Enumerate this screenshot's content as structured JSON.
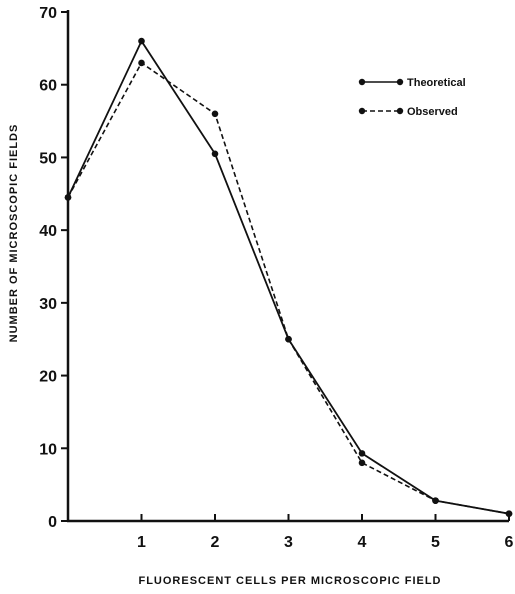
{
  "chart_data": {
    "type": "line",
    "title": "",
    "xlabel": "FLUORESCENT   CELLS   PER   MICROSCOPIC   FIELD",
    "ylabel": "NUMBER   OF   MICROSCOPIC   FIELDS",
    "xlim": [
      0,
      6
    ],
    "ylim": [
      0,
      70
    ],
    "x_ticks": [
      "1",
      "2",
      "3",
      "4",
      "5",
      "6"
    ],
    "y_ticks": [
      "0",
      "10",
      "20",
      "30",
      "40",
      "50",
      "60",
      "70"
    ],
    "grid": false,
    "legend_position": "top-right",
    "series": [
      {
        "name": "Theoretical",
        "style": "solid",
        "x": [
          0,
          1,
          2,
          3,
          4,
          5,
          6
        ],
        "y": [
          44.5,
          66,
          50.5,
          25,
          9.3,
          2.8,
          1
        ]
      },
      {
        "name": "Observed",
        "style": "dashed",
        "x": [
          0,
          1,
          2,
          3,
          4,
          5,
          6
        ],
        "y": [
          44.5,
          63,
          56,
          25,
          8,
          2.8,
          1
        ]
      }
    ]
  }
}
